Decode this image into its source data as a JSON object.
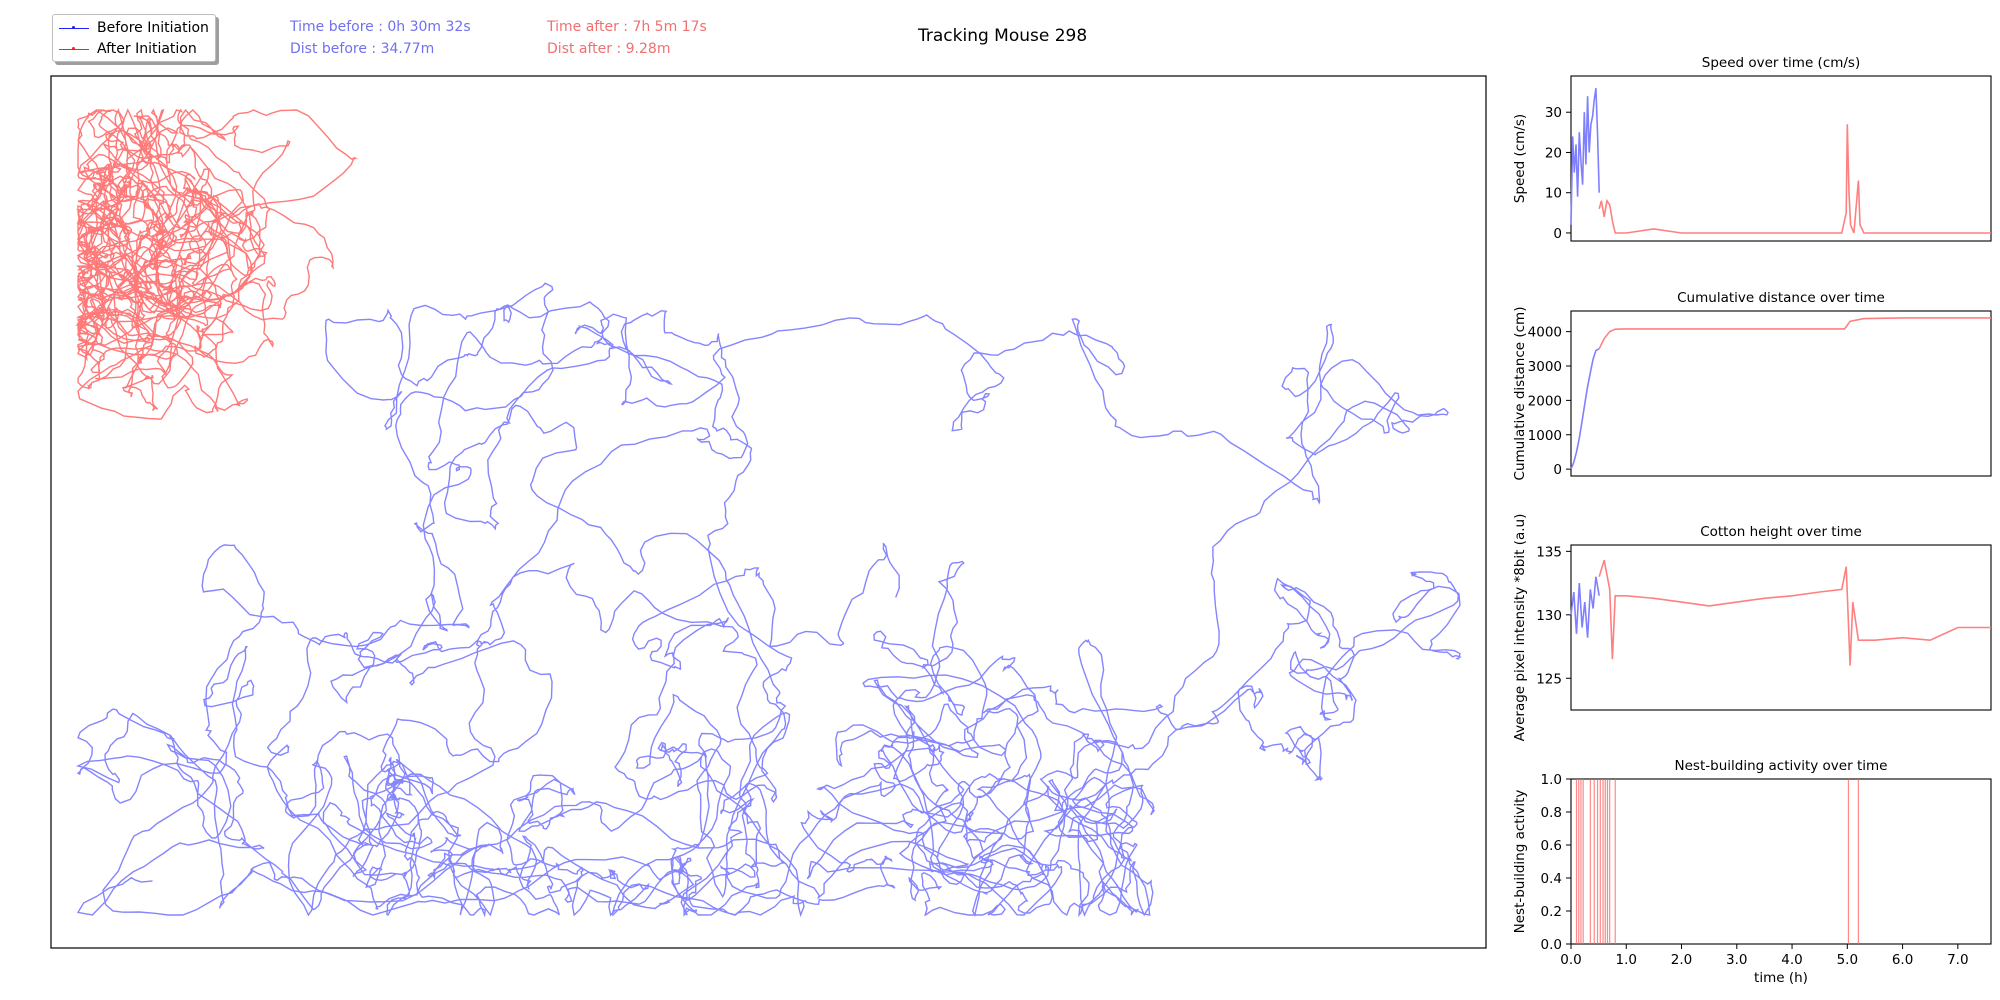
{
  "figure": {
    "title": "Tracking Mouse 298",
    "legend": [
      {
        "label": "Before Initiation",
        "color": "#2020ff"
      },
      {
        "label": "After Initiation",
        "color": "#ff2020"
      }
    ],
    "stats": {
      "time_before": "Time before : 0h 30m 32s",
      "dist_before": "Dist before : 34.77m",
      "time_after": "Time after : 7h 5m 17s",
      "dist_after": "Dist after : 9.28m",
      "before_color": "#7070f0",
      "after_color": "#f07070"
    }
  },
  "chart_data": [
    {
      "type": "line",
      "panel": "trajectory",
      "title": "",
      "series": [
        {
          "name": "Before Initiation",
          "color": "#2020ff",
          "style": "line with point markers, dense random walk across the whole arena"
        },
        {
          "name": "After Initiation",
          "color": "#ff2020",
          "style": "line with point markers, concentrated in upper-left corner"
        }
      ],
      "axes_visible": false
    },
    {
      "type": "line",
      "panel": "speed",
      "title": "Speed over time (cm/s)",
      "xlabel": "",
      "ylabel": "Speed (cm/s)",
      "xlim": [
        0,
        7.6
      ],
      "ylim": [
        -2,
        39
      ],
      "yticks": [
        0,
        10,
        20,
        30
      ],
      "series": [
        {
          "name": "Before Initiation",
          "color": "#8080ff",
          "x": [
            0.0,
            0.03,
            0.06,
            0.09,
            0.12,
            0.15,
            0.18,
            0.21,
            0.24,
            0.27,
            0.3,
            0.33,
            0.36,
            0.39,
            0.42,
            0.45,
            0.48,
            0.51
          ],
          "y": [
            2,
            24,
            15,
            22,
            9,
            25,
            18,
            12,
            30,
            17,
            34,
            20,
            27,
            29,
            33,
            36,
            25,
            10
          ]
        },
        {
          "name": "After Initiation",
          "color": "#ff8080",
          "x": [
            0.51,
            0.55,
            0.6,
            0.65,
            0.7,
            0.75,
            0.8,
            1.0,
            1.5,
            2.0,
            3.0,
            4.0,
            4.9,
            4.98,
            5.0,
            5.03,
            5.06,
            5.12,
            5.2,
            5.23,
            5.3,
            6.0,
            7.0,
            7.6
          ],
          "y": [
            6,
            8,
            4,
            8,
            7,
            3,
            0,
            0,
            1,
            0,
            0,
            0,
            0,
            5,
            27,
            10,
            2,
            0,
            13,
            2,
            0,
            0,
            0,
            0
          ]
        }
      ]
    },
    {
      "type": "line",
      "panel": "cumulative_distance",
      "title": "Cumulative distance over time",
      "xlabel": "",
      "ylabel": "Cumulative distance (cm)",
      "xlim": [
        0,
        7.6
      ],
      "ylim": [
        -200,
        4600
      ],
      "yticks": [
        0,
        1000,
        2000,
        3000,
        4000
      ],
      "series": [
        {
          "name": "Before Initiation",
          "color": "#8080ff",
          "x": [
            0.0,
            0.05,
            0.1,
            0.15,
            0.2,
            0.25,
            0.3,
            0.35,
            0.4,
            0.45,
            0.51
          ],
          "y": [
            0,
            200,
            500,
            900,
            1400,
            1900,
            2400,
            2800,
            3200,
            3450,
            3500
          ]
        },
        {
          "name": "After Initiation",
          "color": "#ff8080",
          "x": [
            0.51,
            0.6,
            0.7,
            0.8,
            1.0,
            2.0,
            3.0,
            4.0,
            4.95,
            5.05,
            5.3,
            6.0,
            7.0,
            7.6
          ],
          "y": [
            3500,
            3800,
            4000,
            4070,
            4080,
            4080,
            4080,
            4080,
            4080,
            4300,
            4380,
            4400,
            4400,
            4400
          ]
        }
      ]
    },
    {
      "type": "line",
      "panel": "cotton_height",
      "title": "Cotton height over time",
      "xlabel": "",
      "ylabel": "Average pixel intensity *8bit (a.u)",
      "xlim": [
        0,
        7.6
      ],
      "ylim": [
        122.5,
        135.5
      ],
      "yticks": [
        125,
        130,
        135
      ],
      "series": [
        {
          "name": "Before Initiation",
          "color": "#8080ff",
          "x": [
            0.0,
            0.05,
            0.1,
            0.15,
            0.2,
            0.25,
            0.3,
            0.35,
            0.4,
            0.45,
            0.51
          ],
          "y": [
            130.0,
            131.8,
            128.5,
            132.5,
            129.0,
            131.0,
            128.2,
            132.0,
            130.5,
            133.0,
            131.5
          ]
        },
        {
          "name": "After Initiation",
          "color": "#ff8080",
          "x": [
            0.51,
            0.6,
            0.7,
            0.75,
            0.8,
            1.0,
            1.5,
            2.0,
            2.5,
            3.0,
            3.5,
            4.0,
            4.5,
            4.9,
            4.98,
            5.05,
            5.1,
            5.2,
            5.5,
            6.0,
            6.5,
            7.0,
            7.6
          ],
          "y": [
            133.0,
            134.3,
            132.0,
            126.5,
            131.5,
            131.5,
            131.3,
            131.0,
            130.7,
            131.0,
            131.3,
            131.5,
            131.8,
            132.0,
            133.8,
            126.0,
            131.0,
            128.0,
            128.0,
            128.2,
            128.0,
            129.0,
            129.0
          ]
        }
      ]
    },
    {
      "type": "bar",
      "panel": "nest_building",
      "title": "Nest-building activity over time",
      "xlabel": "time (h)",
      "ylabel": "Nest-building activity",
      "xlim": [
        0,
        7.6
      ],
      "ylim": [
        0,
        1.0
      ],
      "xticks": [
        0.0,
        1.0,
        2.0,
        3.0,
        4.0,
        5.0,
        6.0,
        7.0
      ],
      "xtick_labels": [
        "0.0",
        "1.0",
        "2.0",
        "3.0",
        "4.0",
        "5.0",
        "6.0",
        "7.0"
      ],
      "yticks": [
        0.0,
        0.2,
        0.4,
        0.6,
        0.8,
        1.0
      ],
      "ytick_labels": [
        "0.0",
        "0.2",
        "0.4",
        "0.6",
        "0.8",
        "1.0"
      ],
      "color": "#ff6060",
      "events": [
        0.1,
        0.14,
        0.18,
        0.22,
        0.35,
        0.42,
        0.48,
        0.53,
        0.58,
        0.62,
        0.66,
        0.7,
        0.8,
        5.02,
        5.2
      ]
    }
  ]
}
